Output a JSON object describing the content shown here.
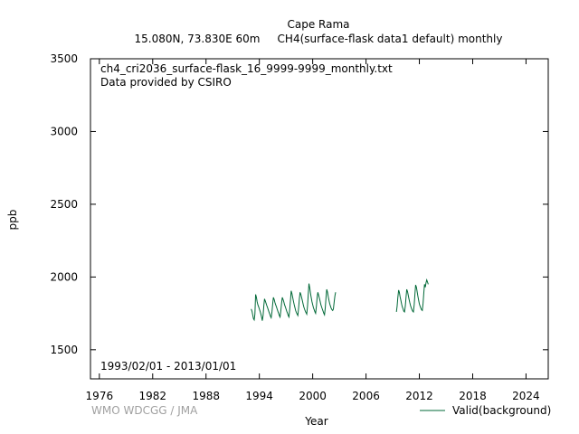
{
  "chart_data": {
    "type": "line",
    "title": "Cape Rama",
    "subtitle": "15.080N, 73.830E 60m     CH4(surface-flask data1 default) monthly",
    "xlabel": "Year",
    "ylabel": "ppb",
    "xlim": [
      1975,
      2026.5
    ],
    "ylim": [
      1300,
      3500
    ],
    "xticks": [
      1976,
      1982,
      1988,
      1994,
      2000,
      2006,
      2012,
      2018,
      2024
    ],
    "yticks": [
      1500,
      2000,
      2500,
      3000,
      3500
    ],
    "file_label": "ch4_cri2036_surface-flask_16_9999-9999_monthly.txt",
    "provider": "Data provided by CSIRO",
    "period": "1993/02/01 - 2013/01/01",
    "watermark": "WMO WDCGG / JMA",
    "legend_position": "bottom-right",
    "series": [
      {
        "name": "Valid(background)",
        "color": "#006837",
        "segments": [
          [
            [
              1993.08,
              1780
            ],
            [
              1993.17,
              1765
            ],
            [
              1993.25,
              1740
            ],
            [
              1993.33,
              1715
            ],
            [
              1993.42,
              1705
            ],
            [
              1993.5,
              1745
            ],
            [
              1993.58,
              1880
            ],
            [
              1993.67,
              1860
            ],
            [
              1993.75,
              1830
            ],
            [
              1993.83,
              1810
            ],
            [
              1993.92,
              1795
            ],
            [
              1994.0,
              1780
            ],
            [
              1994.08,
              1765
            ],
            [
              1994.17,
              1745
            ],
            [
              1994.25,
              1725
            ],
            [
              1994.33,
              1700
            ],
            [
              1994.42,
              1735
            ],
            [
              1994.5,
              1800
            ],
            [
              1994.58,
              1850
            ],
            [
              1994.67,
              1835
            ],
            [
              1994.75,
              1820
            ],
            [
              1994.83,
              1805
            ],
            [
              1994.92,
              1790
            ],
            [
              1995.0,
              1775
            ],
            [
              1995.08,
              1760
            ],
            [
              1995.17,
              1745
            ],
            [
              1995.25,
              1730
            ],
            [
              1995.33,
              1720
            ],
            [
              1995.42,
              1760
            ],
            [
              1995.5,
              1815
            ],
            [
              1995.58,
              1860
            ],
            [
              1995.67,
              1845
            ],
            [
              1995.75,
              1825
            ],
            [
              1995.83,
              1810
            ],
            [
              1995.92,
              1795
            ],
            [
              1996.0,
              1780
            ],
            [
              1996.08,
              1765
            ],
            [
              1996.17,
              1750
            ],
            [
              1996.25,
              1735
            ],
            [
              1996.33,
              1725
            ],
            [
              1996.42,
              1770
            ],
            [
              1996.5,
              1820
            ],
            [
              1996.58,
              1860
            ],
            [
              1996.67,
              1845
            ],
            [
              1996.75,
              1830
            ],
            [
              1996.83,
              1810
            ],
            [
              1996.92,
              1795
            ],
            [
              1997.0,
              1780
            ],
            [
              1997.08,
              1765
            ],
            [
              1997.17,
              1750
            ],
            [
              1997.25,
              1735
            ],
            [
              1997.33,
              1725
            ],
            [
              1997.42,
              1780
            ],
            [
              1997.5,
              1840
            ],
            [
              1997.58,
              1905
            ],
            [
              1997.67,
              1885
            ],
            [
              1997.75,
              1860
            ],
            [
              1997.83,
              1835
            ],
            [
              1997.92,
              1810
            ],
            [
              1998.0,
              1790
            ],
            [
              1998.08,
              1770
            ],
            [
              1998.17,
              1755
            ],
            [
              1998.25,
              1745
            ],
            [
              1998.33,
              1735
            ],
            [
              1998.42,
              1790
            ],
            [
              1998.5,
              1850
            ],
            [
              1998.58,
              1895
            ],
            [
              1998.67,
              1880
            ],
            [
              1998.75,
              1860
            ],
            [
              1998.83,
              1840
            ],
            [
              1998.92,
              1815
            ],
            [
              1999.0,
              1795
            ],
            [
              1999.08,
              1780
            ],
            [
              1999.17,
              1765
            ],
            [
              1999.25,
              1755
            ],
            [
              1999.33,
              1745
            ],
            [
              1999.42,
              1800
            ],
            [
              1999.5,
              1880
            ],
            [
              1999.58,
              1955
            ],
            [
              1999.67,
              1925
            ],
            [
              1999.75,
              1890
            ],
            [
              1999.83,
              1860
            ],
            [
              1999.92,
              1830
            ],
            [
              2000.0,
              1810
            ],
            [
              2000.08,
              1790
            ],
            [
              2000.17,
              1775
            ],
            [
              2000.25,
              1760
            ],
            [
              2000.33,
              1750
            ],
            [
              2000.42,
              1800
            ],
            [
              2000.5,
              1860
            ],
            [
              2000.58,
              1895
            ],
            [
              2000.67,
              1875
            ],
            [
              2000.75,
              1855
            ],
            [
              2000.83,
              1835
            ],
            [
              2000.92,
              1810
            ],
            [
              2001.0,
              1795
            ],
            [
              2001.08,
              1780
            ],
            [
              2001.17,
              1765
            ],
            [
              2001.25,
              1750
            ],
            [
              2001.33,
              1740
            ],
            [
              2001.42,
              1790
            ],
            [
              2001.5,
              1860
            ],
            [
              2001.58,
              1915
            ],
            [
              2001.67,
              1895
            ],
            [
              2001.75,
              1865
            ],
            [
              2001.83,
              1840
            ],
            [
              2001.92,
              1815
            ],
            [
              2002.0,
              1800
            ],
            [
              2002.08,
              1785
            ],
            [
              2002.17,
              1775
            ],
            [
              2002.25,
              1770
            ],
            [
              2002.33,
              1780
            ],
            [
              2002.42,
              1830
            ],
            [
              2002.5,
              1870
            ],
            [
              2002.58,
              1895
            ]
          ],
          [
            [
              2009.42,
              1760
            ],
            [
              2009.5,
              1800
            ],
            [
              2009.58,
              1860
            ],
            [
              2009.67,
              1910
            ],
            [
              2009.75,
              1895
            ],
            [
              2009.83,
              1865
            ],
            [
              2009.92,
              1840
            ],
            [
              2010.0,
              1815
            ],
            [
              2010.08,
              1795
            ],
            [
              2010.17,
              1780
            ],
            [
              2010.25,
              1765
            ],
            [
              2010.33,
              1760
            ],
            [
              2010.42,
              1800
            ],
            [
              2010.5,
              1860
            ],
            [
              2010.58,
              1915
            ],
            [
              2010.67,
              1900
            ],
            [
              2010.75,
              1875
            ],
            [
              2010.83,
              1850
            ],
            [
              2010.92,
              1825
            ],
            [
              2011.0,
              1805
            ],
            [
              2011.08,
              1790
            ],
            [
              2011.17,
              1775
            ],
            [
              2011.25,
              1765
            ],
            [
              2011.33,
              1760
            ],
            [
              2011.42,
              1810
            ],
            [
              2011.5,
              1880
            ],
            [
              2011.58,
              1945
            ],
            [
              2011.67,
              1930
            ],
            [
              2011.75,
              1900
            ],
            [
              2011.83,
              1870
            ],
            [
              2011.92,
              1840
            ],
            [
              2012.0,
              1815
            ],
            [
              2012.08,
              1800
            ],
            [
              2012.17,
              1785
            ],
            [
              2012.25,
              1775
            ],
            [
              2012.33,
              1770
            ],
            [
              2012.42,
              1820
            ],
            [
              2012.5,
              1890
            ],
            [
              2012.58,
              1950
            ],
            [
              2012.67,
              1930
            ],
            [
              2012.75,
              1960
            ],
            [
              2012.83,
              1980
            ],
            [
              2012.92,
              1965
            ],
            [
              2013.0,
              1950
            ]
          ]
        ]
      }
    ]
  }
}
